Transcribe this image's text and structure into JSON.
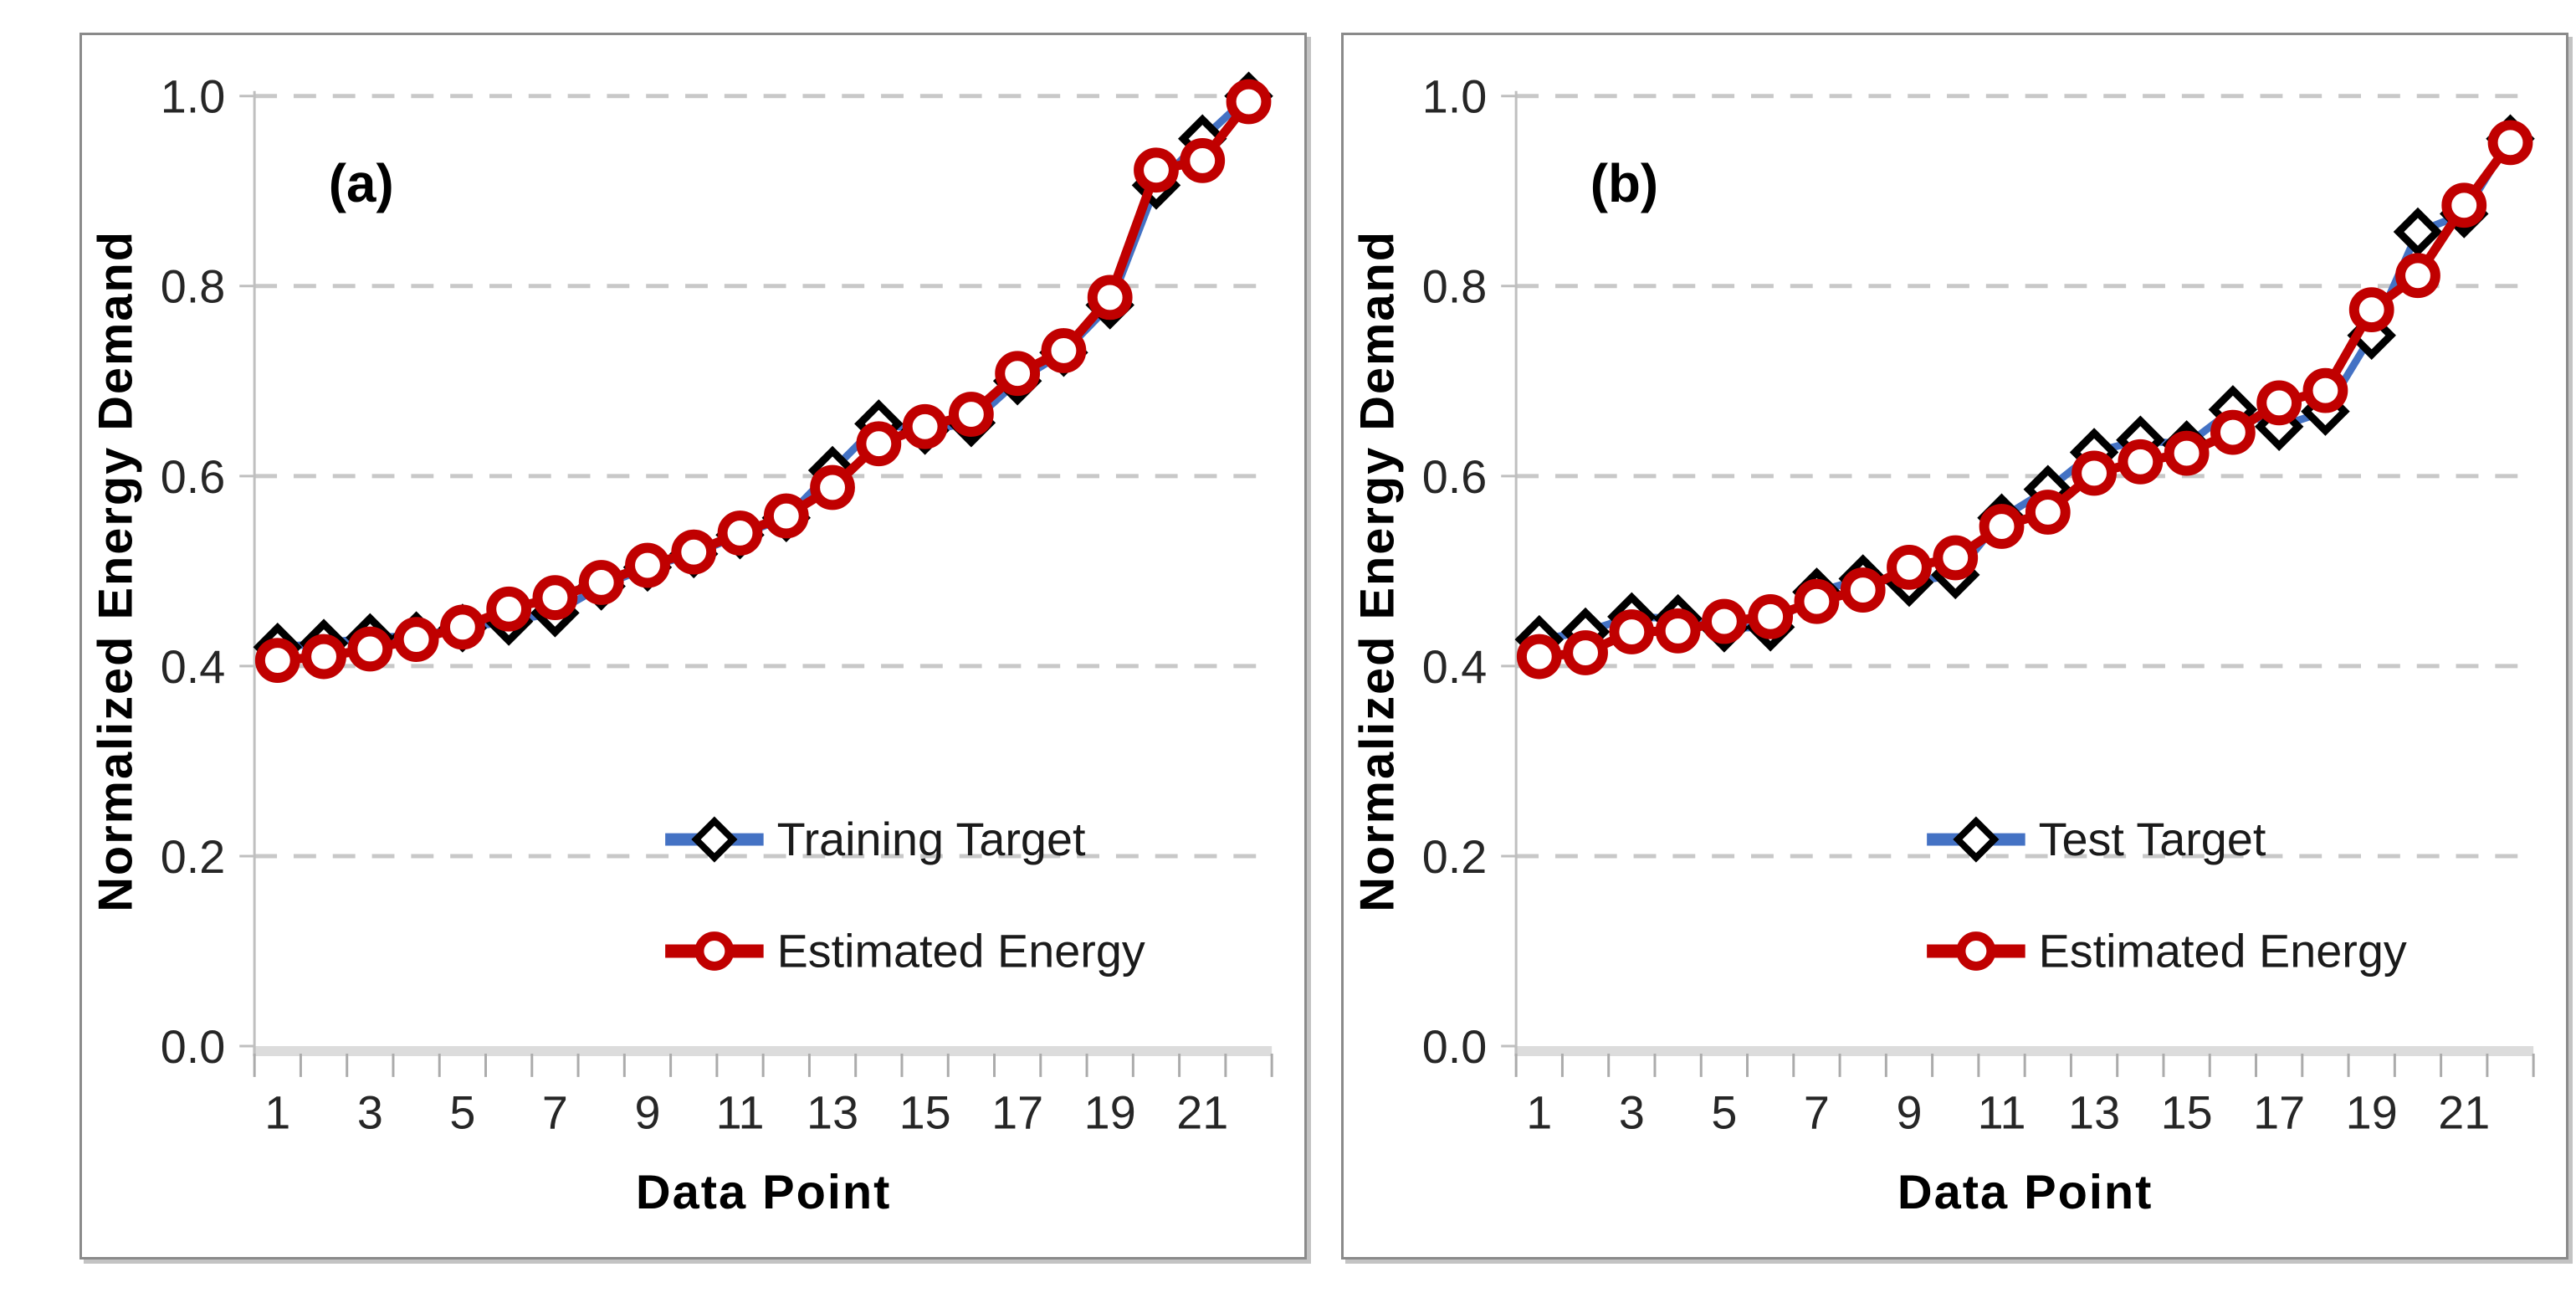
{
  "page": {
    "background": "#ffffff"
  },
  "styles": {
    "red": "#C00000",
    "blue": "#4472C4",
    "marker_black": "#000000",
    "gridline": "#C8C8C8",
    "axis_line": "#BFBFBF",
    "baseline_band": "#DCDCDC",
    "tick_color": "#ABABAB",
    "tick_text": "#262626"
  },
  "chart_data": [
    {
      "type": "line",
      "panel_label": "(a)",
      "xlabel": "Data Point",
      "ylabel": "Normalized Energy Demand",
      "ylim": [
        0.0,
        1.0
      ],
      "grid": "horizontal dashed",
      "legend_position": "inside lower right",
      "y_tick_values": [
        0.0,
        0.2,
        0.4,
        0.6,
        0.8,
        1.0
      ],
      "y_tick_labels": [
        "0.0",
        "0.2",
        "0.4",
        "0.6",
        "0.8",
        "1.0"
      ],
      "x_tick_values": [
        1,
        3,
        5,
        7,
        9,
        11,
        13,
        15,
        17,
        19,
        21
      ],
      "x_tick_labels": [
        "1",
        "3",
        "5",
        "7",
        "9",
        "11",
        "13",
        "15",
        "17",
        "19",
        "21"
      ],
      "x": [
        1,
        2,
        3,
        4,
        5,
        6,
        7,
        8,
        9,
        10,
        11,
        12,
        13,
        14,
        15,
        16,
        17,
        18,
        19,
        20,
        21,
        22
      ],
      "series": [
        {
          "name": "Training Target",
          "line_color": "#4472C4",
          "marker": "open-diamond",
          "marker_color": "#000000",
          "values": [
            0.42,
            0.424,
            0.43,
            0.432,
            0.44,
            0.447,
            0.456,
            0.484,
            0.504,
            0.518,
            0.538,
            0.556,
            0.606,
            0.655,
            0.648,
            0.656,
            0.7,
            0.73,
            0.78,
            0.906,
            0.955,
            1.0
          ]
        },
        {
          "name": "Estimated Energy",
          "line_color": "#C00000",
          "marker": "open-circle",
          "marker_color": "#C00000",
          "values": [
            0.406,
            0.41,
            0.418,
            0.428,
            0.441,
            0.46,
            0.472,
            0.488,
            0.506,
            0.52,
            0.54,
            0.558,
            0.588,
            0.634,
            0.652,
            0.665,
            0.708,
            0.732,
            0.788,
            0.922,
            0.932,
            0.994
          ]
        }
      ]
    },
    {
      "type": "line",
      "panel_label": "(b)",
      "xlabel": "Data Point",
      "ylabel": "Normalized Energy Demand",
      "ylim": [
        0.0,
        1.0
      ],
      "grid": "horizontal dashed",
      "legend_position": "inside lower right",
      "y_tick_values": [
        0.0,
        0.2,
        0.4,
        0.6,
        0.8,
        1.0
      ],
      "y_tick_labels": [
        "0.0",
        "0.2",
        "0.4",
        "0.6",
        "0.8",
        "1.0"
      ],
      "x_tick_values": [
        1,
        3,
        5,
        7,
        9,
        11,
        13,
        15,
        17,
        19,
        21
      ],
      "x_tick_labels": [
        "1",
        "3",
        "5",
        "7",
        "9",
        "11",
        "13",
        "15",
        "17",
        "19",
        "21"
      ],
      "x": [
        1,
        2,
        3,
        4,
        5,
        6,
        7,
        8,
        9,
        10,
        11,
        12,
        13,
        14,
        15,
        16,
        17,
        18,
        19,
        20,
        21,
        22
      ],
      "series": [
        {
          "name": "Test Target",
          "line_color": "#4472C4",
          "marker": "open-diamond",
          "marker_color": "#000000",
          "values": [
            0.428,
            0.436,
            0.452,
            0.45,
            0.44,
            0.441,
            0.478,
            0.492,
            0.488,
            0.496,
            0.556,
            0.586,
            0.625,
            0.638,
            0.633,
            0.67,
            0.652,
            0.668,
            0.748,
            0.857,
            0.876,
            0.955
          ]
        },
        {
          "name": "Estimated Energy",
          "line_color": "#C00000",
          "marker": "open-circle",
          "marker_color": "#C00000",
          "values": [
            0.41,
            0.414,
            0.436,
            0.437,
            0.447,
            0.452,
            0.468,
            0.48,
            0.504,
            0.514,
            0.547,
            0.562,
            0.603,
            0.615,
            0.624,
            0.646,
            0.677,
            0.69,
            0.775,
            0.811,
            0.885,
            0.951
          ]
        }
      ]
    }
  ]
}
